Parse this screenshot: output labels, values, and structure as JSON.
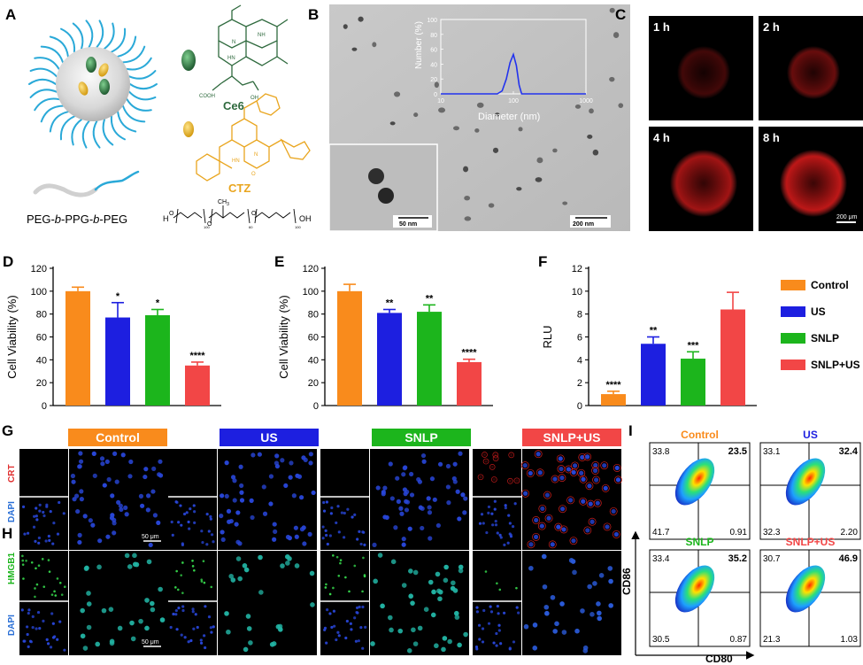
{
  "colors": {
    "control": "#f98b1c",
    "us": "#1d1fe0",
    "snlp": "#1cb51c",
    "snlp_us": "#f24646",
    "ce6": "#2f6a3e",
    "ctz": "#e9a51e",
    "polymer": "#2aa9d8"
  },
  "panel_a": {
    "letter": "A",
    "ce6_label": "Ce6",
    "ctz_label": "CTZ",
    "copolymer_prefix": "PEG-",
    "copolymer_b1": "b",
    "copolymer_mid": "-PPG-",
    "copolymer_b2": "b",
    "copolymer_suffix": "-PEG",
    "formula_h": "H",
    "formula_oh": "OH",
    "formula_o": "O",
    "formula_ch3": "CH",
    "formula_3": "3",
    "formula_n1": "100",
    "formula_n2": "60",
    "formula_n3": "100",
    "ring_n": "N",
    "ring_nh": "NH",
    "ring_hn": "HN",
    "ring_o": "O",
    "ce6_cooh": "COOH",
    "ce6_oh": "OH"
  },
  "panel_b": {
    "letter": "B",
    "inset_ylabel": "Number (%)",
    "inset_xlabel": "Diameter (nm)",
    "inset_yticks": [
      "0",
      "20",
      "40",
      "60",
      "80",
      "100"
    ],
    "inset_xticks": [
      "10",
      "100",
      "1000"
    ],
    "scale_small": "50 nm",
    "scale_large": "200 nm"
  },
  "panel_c": {
    "letter": "C",
    "times": [
      "1 h",
      "2 h",
      "4 h",
      "8 h"
    ],
    "scale": "200 μm"
  },
  "panel_g": {
    "letter": "G",
    "row_label": "CRT",
    "dapi_label": "DAPI",
    "scale": "50 μm"
  },
  "panel_h": {
    "letter": "H",
    "row_label": "HMGB1",
    "dapi_label": "DAPI",
    "scale": "50 μm"
  },
  "group_labels": [
    "Control",
    "US",
    "SNLP",
    "SNLP+US"
  ],
  "panel_i": {
    "letter": "I",
    "ylabel": "CD86",
    "xlabel": "CD80",
    "plots": [
      {
        "title": "Control",
        "q_ul": "33.8",
        "q_ur": "23.5",
        "q_ll": "41.7",
        "q_lr": "0.91"
      },
      {
        "title": "US",
        "q_ul": "33.1",
        "q_ur": "32.4",
        "q_ll": "32.3",
        "q_lr": "2.20"
      },
      {
        "title": "SNLP",
        "q_ul": "33.4",
        "q_ur": "35.2",
        "q_ll": "30.5",
        "q_lr": "0.87"
      },
      {
        "title": "SNLP+US",
        "q_ul": "30.7",
        "q_ur": "46.9",
        "q_ll": "21.3",
        "q_lr": "1.03"
      }
    ]
  },
  "legend": {
    "items": [
      "Control",
      "US",
      "SNLP",
      "SNLP+US"
    ]
  },
  "chart_data": [
    {
      "panel": "D",
      "type": "bar",
      "categories": [
        "Control",
        "US",
        "SNLP",
        "SNLP+US"
      ],
      "values": [
        100,
        77,
        79,
        35
      ],
      "errors": [
        3.5,
        13,
        5,
        3
      ],
      "significance": [
        "",
        "*",
        "*",
        "****"
      ],
      "ylabel": "Cell Viability (%)",
      "ylim": [
        0,
        120
      ],
      "yticks": [
        "0",
        "20",
        "40",
        "60",
        "80",
        "100",
        "120"
      ]
    },
    {
      "panel": "E",
      "type": "bar",
      "categories": [
        "Control",
        "US",
        "SNLP",
        "SNLP+US"
      ],
      "values": [
        100,
        81,
        82,
        38
      ],
      "errors": [
        6,
        3,
        6,
        2.5
      ],
      "significance": [
        "",
        "**",
        "**",
        "****"
      ],
      "ylabel": "Cell Viability (%)",
      "ylim": [
        0,
        120
      ],
      "yticks": [
        "0",
        "20",
        "40",
        "60",
        "80",
        "100",
        "120"
      ]
    },
    {
      "panel": "F",
      "type": "bar",
      "categories": [
        "Control",
        "US",
        "SNLP",
        "SNLP+US"
      ],
      "values": [
        1.0,
        5.4,
        4.1,
        8.4
      ],
      "errors": [
        0.25,
        0.6,
        0.6,
        1.5
      ],
      "significance": [
        "****",
        "**",
        "***",
        ""
      ],
      "ylabel": "RLU",
      "ylim": [
        0,
        12
      ],
      "yticks": [
        "0",
        "2",
        "4",
        "6",
        "8",
        "10",
        "12"
      ]
    },
    {
      "panel": "B-inset",
      "type": "line",
      "x": [
        10,
        60,
        70,
        80,
        90,
        100,
        110,
        120,
        130,
        1000
      ],
      "y": [
        0,
        0,
        4,
        20,
        42,
        53,
        38,
        12,
        0,
        0
      ],
      "xlabel": "Diameter (nm)",
      "ylabel": "Number (%)",
      "xscale": "log",
      "xlim": [
        10,
        1000
      ],
      "ylim": [
        0,
        100
      ]
    }
  ]
}
